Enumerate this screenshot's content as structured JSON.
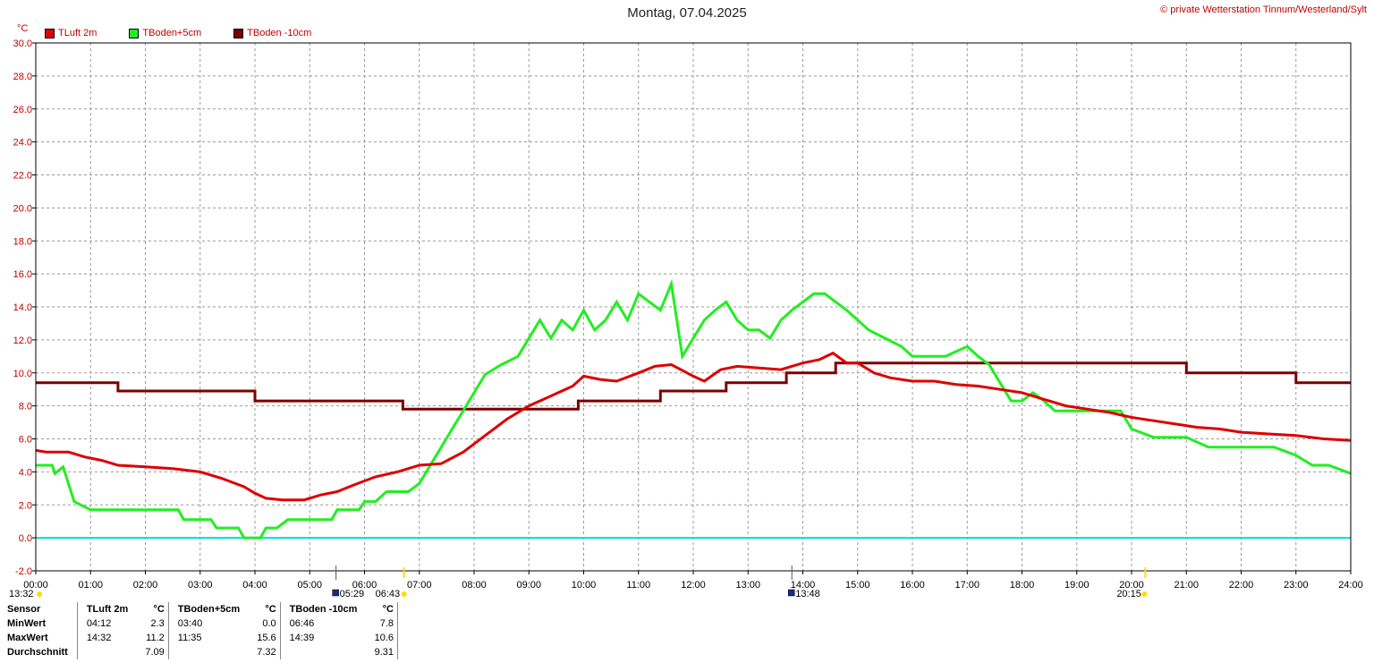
{
  "title": "Montag, 07.04.2025",
  "copyright": "© private Wetterstation Tinnum/Westerland/Sylt",
  "unit_label": "°C",
  "colors": {
    "tluft": "#dd0000",
    "tboden5": "#22ee22",
    "tboden10": "#7a0000",
    "zero": "#00dddd",
    "grid": "#999999"
  },
  "legend": [
    {
      "label": "TLuft 2m",
      "color": "#dd0000"
    },
    {
      "label": "TBoden+5cm",
      "color": "#22ee22"
    },
    {
      "label": "TBoden -10cm",
      "color": "#7a0000"
    }
  ],
  "chart_data": {
    "type": "line",
    "title": "Montag, 07.04.2025",
    "ylabel": "°C",
    "ylim": [
      -2.0,
      30.0
    ],
    "xlim": [
      0,
      24
    ],
    "y_ticks": [
      "-2.0",
      "0.0",
      "2.0",
      "4.0",
      "6.0",
      "8.0",
      "10.0",
      "12.0",
      "14.0",
      "16.0",
      "18.0",
      "20.0",
      "22.0",
      "24.0",
      "26.0",
      "28.0",
      "30.0"
    ],
    "x_ticks": [
      "00:00",
      "01:00",
      "02:00",
      "03:00",
      "04:00",
      "05:00",
      "06:00",
      "07:00",
      "08:00",
      "09:00",
      "10:00",
      "11:00",
      "12:00",
      "13:00",
      "14:00",
      "15:00",
      "16:00",
      "17:00",
      "18:00",
      "19:00",
      "20:00",
      "21:00",
      "22:00",
      "23:00",
      "24:00"
    ],
    "grid": true,
    "series": [
      {
        "name": "TLuft 2m",
        "color": "#dd0000",
        "x": [
          0,
          0.2,
          0.6,
          0.9,
          1.2,
          1.5,
          2.0,
          2.5,
          3.0,
          3.4,
          3.8,
          4.0,
          4.2,
          4.5,
          4.9,
          5.2,
          5.5,
          5.8,
          6.2,
          6.6,
          7.0,
          7.4,
          7.8,
          8.2,
          8.6,
          9.0,
          9.4,
          9.8,
          10.0,
          10.3,
          10.6,
          11.0,
          11.3,
          11.6,
          12.0,
          12.2,
          12.5,
          12.8,
          13.2,
          13.6,
          14.0,
          14.3,
          14.55,
          14.8,
          15.0,
          15.3,
          15.6,
          16.0,
          16.4,
          16.8,
          17.2,
          17.6,
          18.0,
          18.4,
          18.8,
          19.2,
          19.6,
          20.0,
          20.4,
          20.8,
          21.2,
          21.6,
          22.0,
          22.5,
          23.0,
          23.5,
          24.0
        ],
        "y": [
          5.3,
          5.2,
          5.2,
          4.9,
          4.7,
          4.4,
          4.3,
          4.2,
          4.0,
          3.6,
          3.1,
          2.7,
          2.4,
          2.3,
          2.3,
          2.6,
          2.8,
          3.2,
          3.7,
          4.0,
          4.4,
          4.5,
          5.2,
          6.2,
          7.2,
          8.0,
          8.6,
          9.2,
          9.8,
          9.6,
          9.5,
          10.0,
          10.4,
          10.5,
          9.8,
          9.5,
          10.2,
          10.4,
          10.3,
          10.2,
          10.6,
          10.8,
          11.2,
          10.6,
          10.6,
          10.0,
          9.7,
          9.5,
          9.5,
          9.3,
          9.2,
          9.0,
          8.8,
          8.4,
          8.0,
          7.8,
          7.6,
          7.3,
          7.1,
          6.9,
          6.7,
          6.6,
          6.4,
          6.3,
          6.2,
          6.0,
          5.9
        ]
      },
      {
        "name": "TBoden+5cm",
        "color": "#22ee22",
        "x": [
          0,
          0.3,
          0.35,
          0.5,
          0.7,
          1.0,
          1.5,
          2.0,
          2.6,
          2.7,
          3.2,
          3.3,
          3.5,
          3.7,
          3.8,
          4.1,
          4.2,
          4.4,
          4.6,
          5.0,
          5.4,
          5.5,
          5.7,
          5.8,
          5.9,
          6.0,
          6.2,
          6.4,
          6.6,
          6.8,
          7.0,
          7.2,
          7.4,
          7.6,
          7.8,
          8.0,
          8.2,
          8.5,
          8.8,
          9.0,
          9.2,
          9.4,
          9.6,
          9.8,
          10.0,
          10.2,
          10.4,
          10.6,
          10.8,
          11.0,
          11.2,
          11.4,
          11.6,
          11.8,
          12.0,
          12.2,
          12.4,
          12.6,
          12.8,
          13.0,
          13.2,
          13.4,
          13.6,
          13.8,
          14.0,
          14.2,
          14.4,
          14.6,
          14.8,
          15.0,
          15.2,
          15.5,
          15.8,
          16.0,
          16.2,
          16.6,
          17.0,
          17.2,
          17.4,
          17.6,
          17.8,
          18.0,
          18.2,
          18.4,
          18.6,
          19.0,
          19.4,
          19.6,
          19.8,
          20.0,
          20.4,
          20.8,
          21.0,
          21.4,
          21.8,
          22.2,
          22.6,
          23.0,
          23.3,
          23.6,
          24.0
        ],
        "y": [
          4.4,
          4.4,
          3.9,
          4.3,
          2.2,
          1.7,
          1.7,
          1.7,
          1.7,
          1.1,
          1.1,
          0.6,
          0.6,
          0.6,
          0.0,
          0.0,
          0.6,
          0.6,
          1.1,
          1.1,
          1.1,
          1.7,
          1.7,
          1.7,
          1.7,
          2.2,
          2.2,
          2.8,
          2.8,
          2.8,
          3.3,
          4.4,
          5.5,
          6.6,
          7.7,
          8.8,
          9.9,
          10.5,
          11.0,
          12.1,
          13.2,
          12.1,
          13.2,
          12.6,
          13.8,
          12.6,
          13.2,
          14.3,
          13.2,
          14.8,
          14.3,
          13.8,
          15.4,
          11.0,
          12.1,
          13.2,
          13.8,
          14.3,
          13.2,
          12.6,
          12.6,
          12.1,
          13.2,
          13.8,
          14.3,
          14.8,
          14.8,
          14.3,
          13.8,
          13.2,
          12.6,
          12.1,
          11.6,
          11.0,
          11.0,
          11.0,
          11.6,
          11.0,
          10.5,
          9.4,
          8.3,
          8.3,
          8.8,
          8.3,
          7.7,
          7.7,
          7.7,
          7.7,
          7.7,
          6.6,
          6.1,
          6.1,
          6.1,
          5.5,
          5.5,
          5.5,
          5.5,
          5.0,
          4.4,
          4.4,
          3.9
        ]
      },
      {
        "name": "TBoden -10cm",
        "color": "#7a0000",
        "x": [
          0,
          1.5,
          1.5,
          4.0,
          4.0,
          6.7,
          6.7,
          9.9,
          9.9,
          11.4,
          11.4,
          12.6,
          12.6,
          13.7,
          13.7,
          14.6,
          14.6,
          21.0,
          21.0,
          23.0,
          23.0,
          24.0
        ],
        "y": [
          9.4,
          9.4,
          8.9,
          8.9,
          8.3,
          8.3,
          7.8,
          7.8,
          8.3,
          8.3,
          8.9,
          8.9,
          9.4,
          9.4,
          10.0,
          10.0,
          10.6,
          10.6,
          10.0,
          10.0,
          9.4,
          9.4
        ]
      },
      {
        "name": "",
        "color": "#00dddd",
        "x": [
          0,
          24
        ],
        "y": [
          0.0,
          0.0
        ]
      }
    ],
    "annotations": [
      {
        "text": "13:32",
        "x": 0.0
      },
      {
        "text": "05:29",
        "x": 5.48
      },
      {
        "text": "06:43",
        "x": 6.72
      },
      {
        "text": "13:48",
        "x": 13.8
      },
      {
        "text": "20:15",
        "x": 20.25
      }
    ]
  },
  "stats": {
    "headers": [
      "Sensor",
      "TLuft 2m",
      "°C",
      "TBoden+5cm",
      "°C",
      "TBoden -10cm",
      "°C"
    ],
    "rows": [
      {
        "label": "MinWert",
        "t1": "04:12",
        "v1": "2.3",
        "t2": "03:40",
        "v2": "0.0",
        "t3": "06:46",
        "v3": "7.8"
      },
      {
        "label": "MaxWert",
        "t1": "14:32",
        "v1": "11.2",
        "t2": "11:35",
        "v2": "15.6",
        "t3": "14:39",
        "v3": "10.6"
      },
      {
        "label": "Durchschnitt",
        "t1": "",
        "v1": "7.09",
        "t2": "",
        "v2": "7.32",
        "t3": "",
        "v3": "9.31"
      }
    ]
  }
}
